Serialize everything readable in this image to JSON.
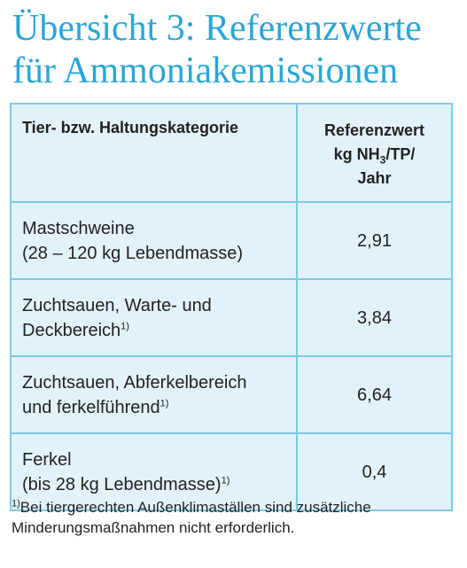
{
  "title": {
    "line1": "Übersicht 3: Referenzwerte",
    "line2": "für Ammoniakemissionen"
  },
  "table": {
    "header": {
      "category": "Tier- bzw. Haltungskategorie",
      "value_line1": "Referenzwert",
      "value_line2_prefix": "kg NH",
      "value_line2_sub": "3",
      "value_line2_suffix": "/TP/",
      "value_line3": "Jahr"
    },
    "rows": [
      {
        "line1": "Mastschweine",
        "line2": "(28 – 120 kg Lebendmasse)",
        "footnote": "",
        "value": "2,91"
      },
      {
        "line1": "Zuchtsauen, Warte- und",
        "line2": "Deckbereich",
        "footnote": "1)",
        "value": "3,84"
      },
      {
        "line1": "Zuchtsauen, Abferkelbereich",
        "line2": "und ferkelführend",
        "footnote": "1)",
        "value": "6,64"
      },
      {
        "line1": "Ferkel",
        "line2": "(bis 28 kg Lebendmasse)",
        "footnote": "1)",
        "value": "0,4"
      }
    ]
  },
  "footnote": {
    "marker": "1)",
    "text": "Bei tiergerechten Außenklimaställen sind zusätzliche Minderungsmaßnahmen nicht erforderlich."
  },
  "colors": {
    "accent": "#2aa6d6",
    "border": "#7ec9e8",
    "cell_background": "#e2f2fa"
  }
}
